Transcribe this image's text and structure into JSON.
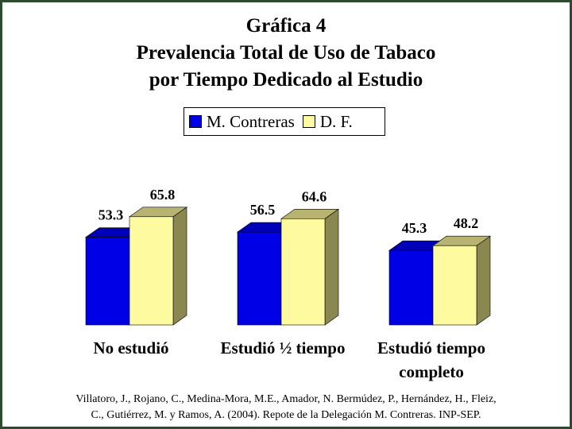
{
  "title_lines": [
    "Gráfica 4",
    "Prevalencia Total de Uso de Tabaco",
    "por Tiempo Dedicado al Estudio"
  ],
  "legend": {
    "items": [
      {
        "label": "M. Contreras",
        "color": "#0000e6"
      },
      {
        "label": "D. F.",
        "color": "#fdfaa0"
      }
    ]
  },
  "chart_data": {
    "type": "bar",
    "categories": [
      "No estudió",
      "Estudió ½ tiempo",
      "Estudió tiempo completo"
    ],
    "category_lines": [
      [
        "No estudió"
      ],
      [
        "Estudió ½ tiempo"
      ],
      [
        "Estudió tiempo",
        "completo"
      ]
    ],
    "series": [
      {
        "name": "M. Contreras",
        "values": [
          53.3,
          56.5,
          45.3
        ],
        "labels": [
          "53.3",
          "56.5",
          "45.3"
        ],
        "color": "#0000e6",
        "top_color": "#0000b8",
        "side_color": "#0000a0"
      },
      {
        "name": "D. F.",
        "values": [
          65.8,
          64.6,
          48.2
        ],
        "labels": [
          "65.8",
          "64.6",
          "48.2"
        ],
        "color": "#fdfaa0",
        "top_color": "#b8b370",
        "side_color": "#8b8750"
      }
    ],
    "title": "Gráfica 4 Prevalencia Total de Uso de Tabaco por Tiempo Dedicado al Estudio",
    "xlabel": "",
    "ylabel": "",
    "ylim": [
      0,
      75
    ],
    "grid": false,
    "legend_position": "top-center"
  },
  "source": {
    "line1": "Villatoro, J., Rojano, C., Medina-Mora, M.E., Amador, N. Bermúdez, P., Hernández, H., Fleiz,",
    "line2": "C., Gutiérrez, M. y Ramos, A. (2004). Repote de la Delegación M. Contreras. INP-SEP."
  }
}
